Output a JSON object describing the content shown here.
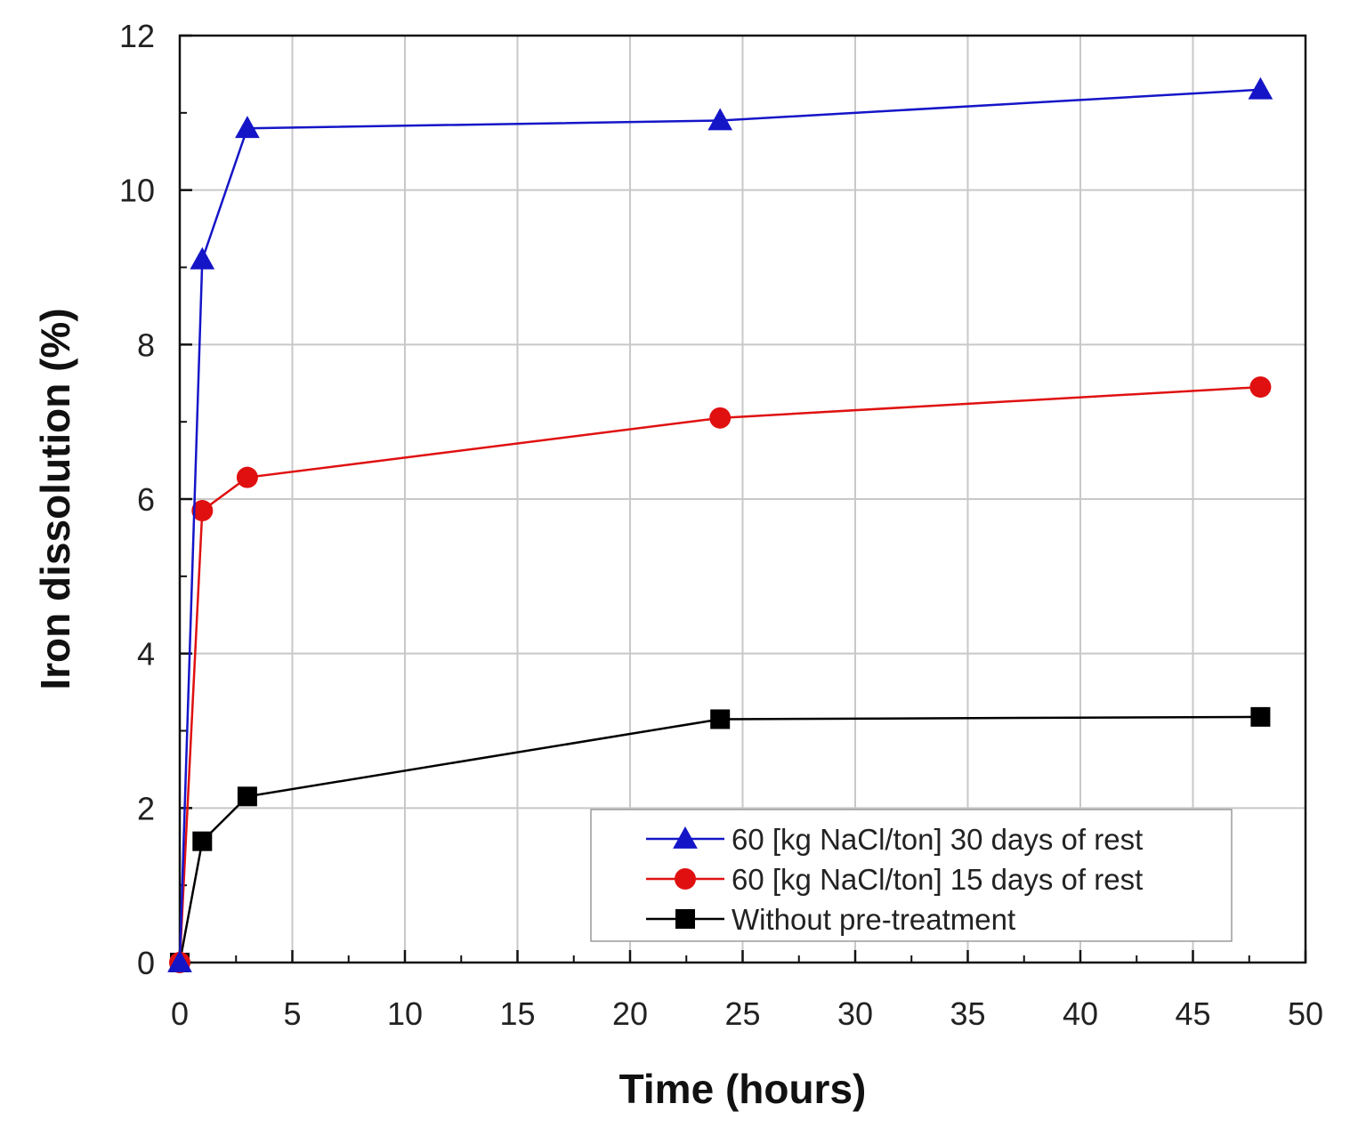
{
  "chart_data": {
    "type": "line",
    "title": "",
    "xlabel": "Time (hours)",
    "ylabel": "Iron dissolution (%)",
    "xlim": [
      0,
      50
    ],
    "ylim": [
      0,
      12
    ],
    "xticks": [
      0,
      5,
      10,
      15,
      20,
      25,
      30,
      35,
      40,
      45,
      50
    ],
    "yticks": [
      0,
      2,
      4,
      6,
      8,
      10,
      12
    ],
    "grid": true,
    "legend_position": "bottom-right",
    "series": [
      {
        "name": "60 [kg NaCl/ton] 30 days of rest",
        "color": "#1515c8",
        "marker": "triangle",
        "x": [
          0,
          1,
          3,
          24,
          48
        ],
        "values": [
          0,
          9.1,
          10.8,
          10.9,
          11.3
        ]
      },
      {
        "name": "60 [kg NaCl/ton] 15 days of rest",
        "color": "#e01010",
        "marker": "circle",
        "x": [
          0,
          1,
          3,
          24,
          48
        ],
        "values": [
          0,
          5.85,
          6.28,
          7.05,
          7.45
        ]
      },
      {
        "name": "Without pre-treatment",
        "color": "#000000",
        "marker": "square",
        "x": [
          0,
          1,
          3,
          24,
          48
        ],
        "values": [
          0,
          1.57,
          2.15,
          3.15,
          3.18
        ]
      }
    ]
  }
}
